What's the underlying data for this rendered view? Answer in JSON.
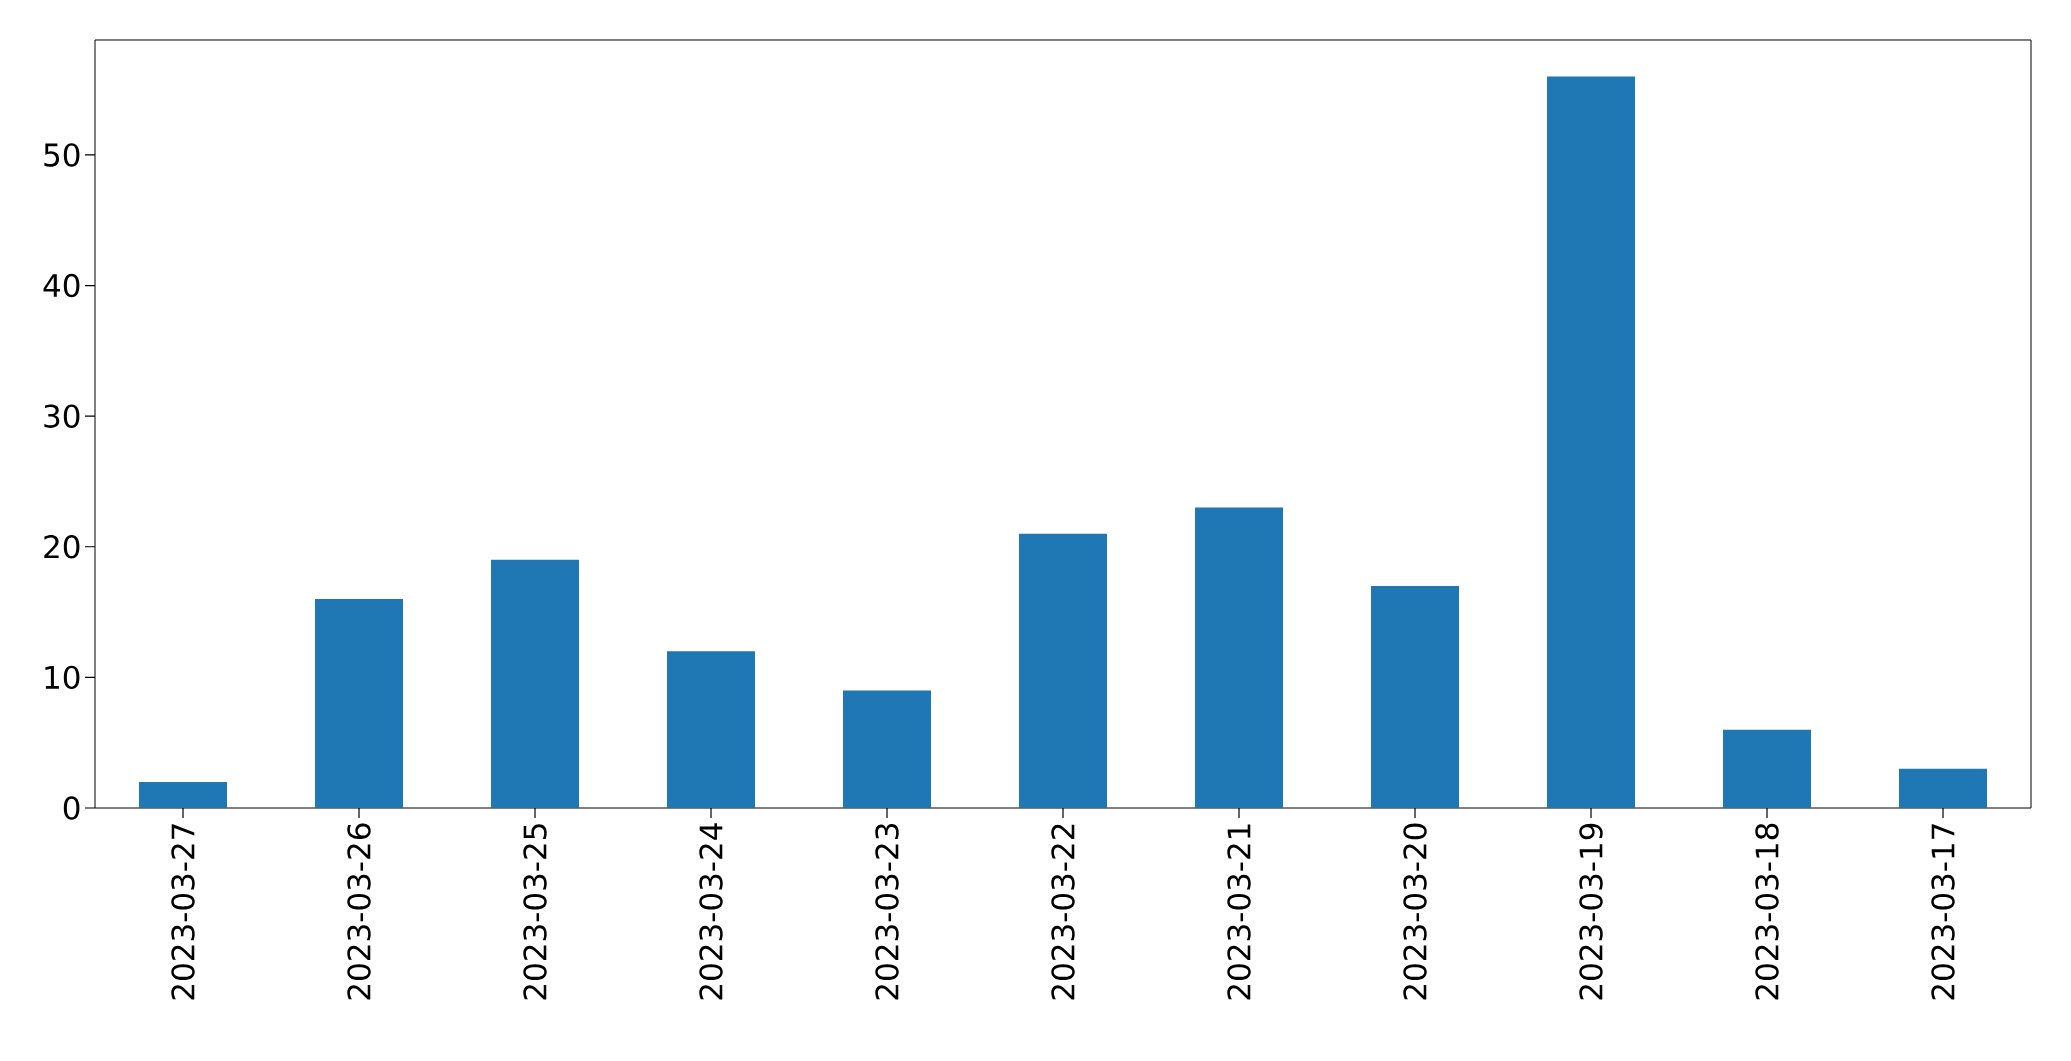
{
  "chart_data": {
    "type": "bar",
    "categories": [
      "2023-03-27",
      "2023-03-26",
      "2023-03-25",
      "2023-03-24",
      "2023-03-23",
      "2023-03-22",
      "2023-03-21",
      "2023-03-20",
      "2023-03-19",
      "2023-03-18",
      "2023-03-17"
    ],
    "values": [
      2,
      16,
      19,
      12,
      9,
      21,
      23,
      17,
      56,
      6,
      3
    ],
    "color": "#1f77b4",
    "ylim": [
      0,
      58.8
    ],
    "yticks": [
      0,
      10,
      20,
      30,
      40,
      50
    ],
    "grid": false
  }
}
